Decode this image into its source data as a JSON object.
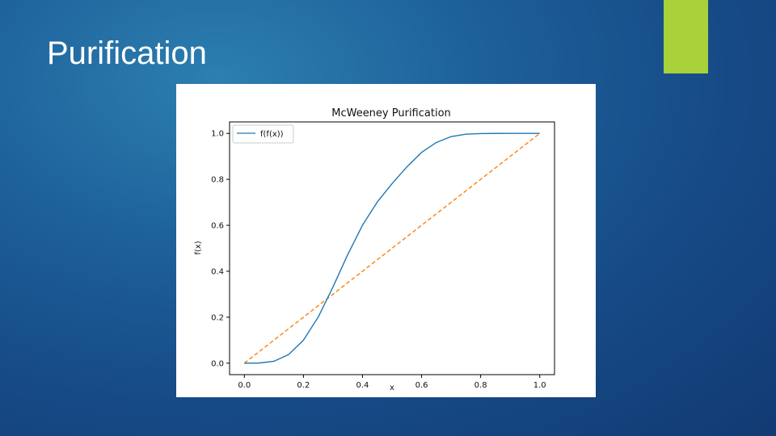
{
  "slide": {
    "title": "Purification",
    "accent_color": "#a8d13a"
  },
  "chart_data": {
    "type": "line",
    "title": "McWeeney Purification",
    "xlabel": "x",
    "ylabel": "f(x)",
    "xlim": [
      -0.05,
      1.05
    ],
    "ylim": [
      -0.05,
      1.05
    ],
    "xticks": [
      "0.0",
      "0.2",
      "0.4",
      "0.6",
      "0.8",
      "1.0"
    ],
    "yticks": [
      "0.0",
      "0.2",
      "0.4",
      "0.6",
      "0.8",
      "1.0"
    ],
    "grid": false,
    "legend_position": "top-left",
    "series": [
      {
        "name": "f(f(x))",
        "color": "#1f77b4",
        "style": "solid",
        "x": [
          0.0,
          0.05,
          0.1,
          0.15,
          0.2,
          0.25,
          0.3,
          0.35,
          0.4,
          0.45,
          0.5,
          0.55,
          0.6,
          0.65,
          0.7,
          0.75,
          0.8,
          0.85,
          0.9,
          0.95,
          1.0
        ],
        "y": [
          0.0,
          0.0005,
          0.0081,
          0.0374,
          0.1,
          0.2003,
          0.3314,
          0.4724,
          0.6004,
          0.7013,
          0.7813,
          0.8539,
          0.9174,
          0.9605,
          0.9862,
          0.9967,
          0.9993,
          0.9999,
          1.0,
          1.0,
          1.0
        ]
      },
      {
        "name": "",
        "color": "#ff7f0e",
        "style": "dashed",
        "x": [
          0.0,
          1.0
        ],
        "y": [
          0.0,
          1.0
        ]
      }
    ]
  }
}
